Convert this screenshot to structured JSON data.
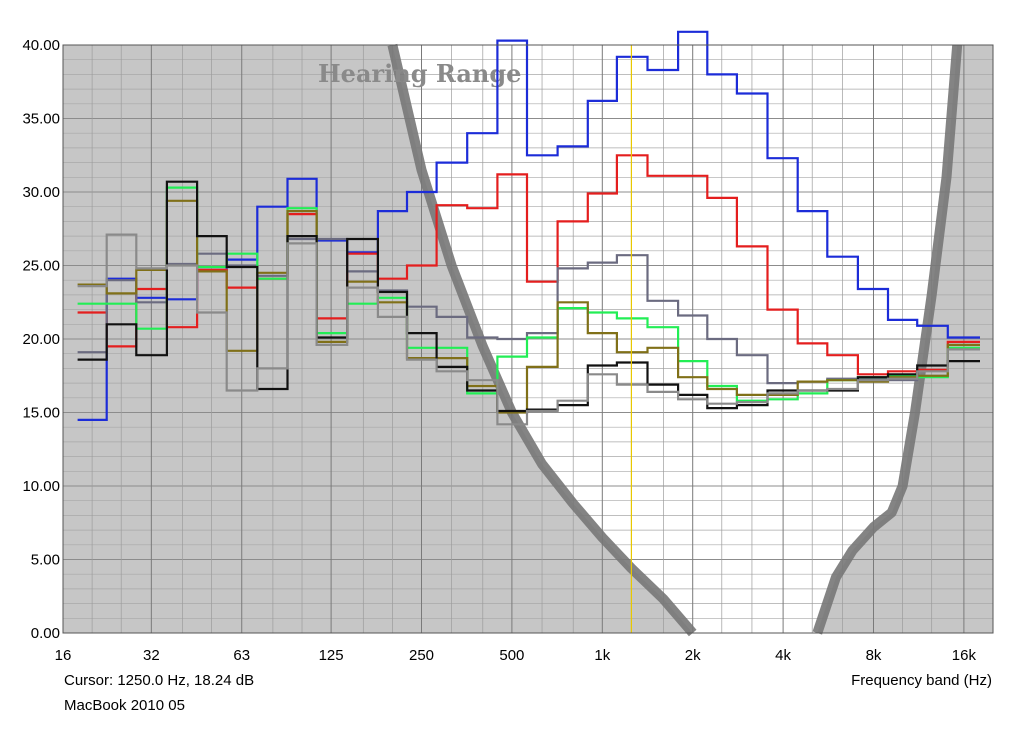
{
  "chart_data": {
    "type": "line",
    "annotation": "Hearing Range",
    "xlabel": "Frequency band (Hz)",
    "ylim": [
      0,
      40
    ],
    "x_tick_labels": [
      "16",
      "32",
      "63",
      "125",
      "250",
      "500",
      "1k",
      "2k",
      "4k",
      "8k",
      "16k"
    ],
    "y_tick_labels": [
      "0.00",
      "5.00",
      "10.00",
      "15.00",
      "20.00",
      "25.00",
      "30.00",
      "35.00",
      "40.00"
    ],
    "band_centers_hz": [
      20,
      25,
      31.5,
      40,
      50,
      63,
      80,
      100,
      125,
      160,
      200,
      250,
      315,
      400,
      500,
      630,
      800,
      1000,
      1250,
      1600,
      2000,
      2500,
      3150,
      4000,
      5000,
      6300,
      8000,
      10000,
      12500,
      16000
    ],
    "cursor": {
      "freq_hz": 1250,
      "text": "Cursor:  1250.0 Hz, 18.24 dB",
      "color": "#e8c800"
    },
    "grid": true,
    "hearing_curve_color": "#777777",
    "series": [
      {
        "color": "#1c2cd8",
        "values": [
          14.5,
          24.1,
          22.8,
          22.7,
          24.7,
          25.4,
          29.0,
          30.9,
          26.7,
          25.9,
          28.7,
          30.0,
          32.0,
          34.0,
          40.3,
          32.5,
          33.1,
          36.2,
          39.2,
          38.3,
          40.9,
          38.0,
          36.7,
          32.3,
          28.7,
          25.6,
          23.4,
          21.3,
          20.9,
          20.1
        ]
      },
      {
        "color": "#e41e1e",
        "values": [
          21.8,
          19.5,
          23.4,
          20.8,
          24.7,
          23.5,
          24.1,
          28.5,
          21.4,
          25.8,
          24.1,
          25.0,
          29.1,
          28.9,
          31.2,
          23.9,
          28.0,
          29.9,
          32.5,
          31.1,
          31.1,
          29.6,
          26.3,
          22.0,
          19.7,
          18.9,
          17.6,
          17.8,
          17.9,
          19.8
        ]
      },
      {
        "color": "#6b6b80",
        "values": [
          19.1,
          24.0,
          22.5,
          25.1,
          25.8,
          25.0,
          24.3,
          26.8,
          26.8,
          24.6,
          23.3,
          22.2,
          21.5,
          20.1,
          20.0,
          20.4,
          24.8,
          25.2,
          25.7,
          22.6,
          21.6,
          20.0,
          18.9,
          17.0,
          17.1,
          17.3,
          17.3,
          17.2,
          17.5,
          19.3
        ]
      },
      {
        "color": "#22ee55",
        "values": [
          22.4,
          22.4,
          20.7,
          30.3,
          24.9,
          25.8,
          24.1,
          28.9,
          20.4,
          22.4,
          22.8,
          19.4,
          19.4,
          16.3,
          18.8,
          20.1,
          22.1,
          21.8,
          21.4,
          20.8,
          18.5,
          16.8,
          15.8,
          15.9,
          16.3,
          17.2,
          17.4,
          17.5,
          17.4,
          19.4
        ]
      },
      {
        "color": "#807018",
        "values": [
          23.7,
          23.1,
          24.7,
          29.4,
          24.6,
          19.2,
          24.5,
          28.7,
          19.8,
          23.9,
          22.5,
          18.7,
          18.7,
          16.8,
          15.0,
          18.1,
          22.5,
          20.4,
          19.1,
          19.4,
          17.4,
          16.6,
          16.2,
          16.2,
          17.1,
          17.2,
          17.1,
          17.4,
          17.5,
          19.6
        ]
      },
      {
        "color": "#111111",
        "values": [
          18.6,
          21.0,
          18.9,
          30.7,
          27.0,
          24.9,
          16.6,
          27.0,
          20.1,
          26.8,
          23.2,
          20.4,
          18.1,
          16.5,
          15.1,
          15.2,
          15.5,
          18.2,
          18.4,
          16.9,
          16.2,
          15.3,
          15.5,
          16.5,
          16.5,
          16.5,
          17.4,
          17.6,
          18.2,
          18.5
        ]
      },
      {
        "color": "#8a8a8a",
        "values": [
          23.6,
          27.1,
          24.8,
          25.0,
          21.8,
          16.5,
          18.0,
          26.5,
          19.6,
          23.5,
          21.5,
          18.6,
          17.8,
          17.2,
          14.2,
          15.1,
          15.8,
          17.6,
          16.9,
          16.4,
          15.9,
          15.6,
          15.7,
          16.3,
          16.5,
          16.6,
          17.2,
          17.3,
          17.8,
          19.3
        ]
      }
    ]
  },
  "footer": {
    "cursor_text": "Cursor:  1250.0 Hz, 18.24 dB",
    "device_label": "MacBook 2010 05",
    "xlabel": "Frequency band (Hz)"
  }
}
